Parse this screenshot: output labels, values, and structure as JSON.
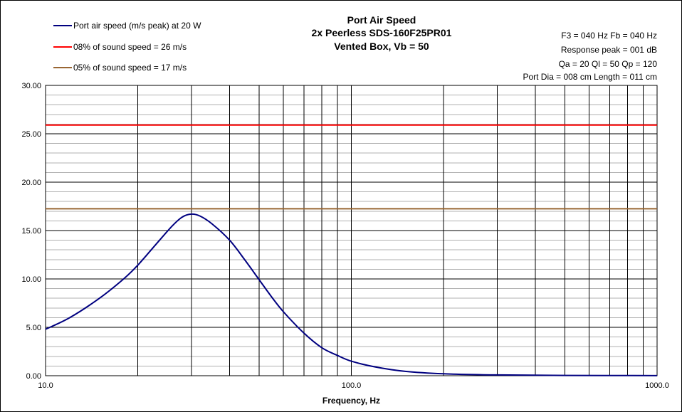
{
  "chart_data": {
    "type": "line",
    "title": [
      "Port Air Speed",
      "2x Peerless SDS-160F25PR01",
      "Vented Box, Vb = 50"
    ],
    "xlabel": "Frequency, Hz",
    "ylabel": "",
    "xscale": "log",
    "xlim": [
      10,
      1000
    ],
    "ylim": [
      0,
      30
    ],
    "xticks": [
      "10.0",
      "100.0",
      "1000.0"
    ],
    "yticks": [
      "0.00",
      "5.00",
      "10.00",
      "15.00",
      "20.00",
      "25.00",
      "30.00"
    ],
    "grid": true,
    "legend_position": "top-left",
    "info": [
      "F3 = 040 Hz  Fb = 040 Hz",
      "Response peak = 001 dB",
      "Qa = 20  Ql = 50  Qp = 120",
      "Port Dia = 008 cm  Length = 011 cm"
    ],
    "series": [
      {
        "name": "Port air speed (m/s peak) at 20 W",
        "color": "#000080",
        "x": [
          10,
          12,
          15,
          18,
          20,
          23,
          26,
          28,
          30,
          32,
          35,
          40,
          45,
          50,
          55,
          60,
          70,
          80,
          90,
          100,
          120,
          150,
          200,
          300,
          500,
          1000
        ],
        "y": [
          4.8,
          6.0,
          8.0,
          10.0,
          11.4,
          13.6,
          15.5,
          16.4,
          16.7,
          16.5,
          15.7,
          14.0,
          11.9,
          9.9,
          8.1,
          6.6,
          4.4,
          2.9,
          2.1,
          1.5,
          0.9,
          0.45,
          0.2,
          0.08,
          0.03,
          0.01
        ]
      },
      {
        "name": "08% of sound speed =  26 m/s",
        "color": "#ff0000",
        "x": [
          10,
          1000
        ],
        "y": [
          25.9,
          25.9
        ]
      },
      {
        "name": "05% of sound speed =  17 m/s",
        "color": "#996633",
        "x": [
          10,
          1000
        ],
        "y": [
          17.25,
          17.25
        ]
      }
    ]
  }
}
